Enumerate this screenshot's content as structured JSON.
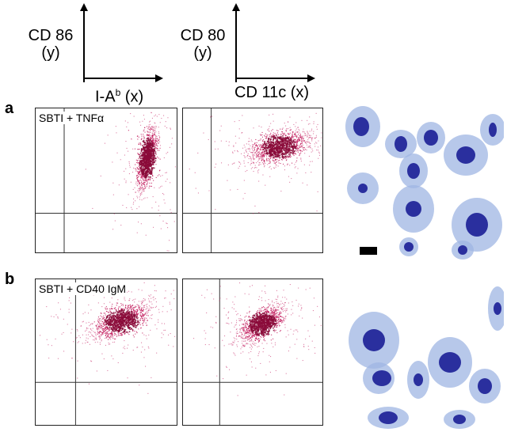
{
  "legend": {
    "left": {
      "y_label": "CD 86",
      "y_suffix": "(y)",
      "x_label": "I-A",
      "x_sup": "b",
      "x_suffix": " (x)"
    },
    "right": {
      "y_label": "CD 80",
      "y_suffix": "(y)",
      "x_label": "CD 11c (x)"
    }
  },
  "rows": [
    {
      "letter": "a",
      "condition": "SBTI + TNFα"
    },
    {
      "letter": "b",
      "condition": "SBTI + CD40 IgM"
    }
  ],
  "colors": {
    "dots": "#c2185b",
    "dots_dense": "#8b0a3a",
    "cell_cytoplasm": "#9fb6e3",
    "cell_nucleus": "#2a2f9e",
    "scale_bar": "#000000"
  },
  "chart_data": [
    {
      "type": "scatter",
      "panel": "a-left",
      "x_axis": "I-Ab",
      "y_axis": "CD 86",
      "scale": "log",
      "population": "diagonal elongated cluster",
      "center": [
        0.78,
        0.66
      ],
      "spread": [
        0.06,
        0.14
      ],
      "tilt": 0.9
    },
    {
      "type": "scatter",
      "panel": "a-right",
      "x_axis": "CD 11c",
      "y_axis": "CD 80",
      "scale": "log",
      "population": "compact cluster high y",
      "center": [
        0.68,
        0.74
      ],
      "spread": [
        0.12,
        0.08
      ],
      "tilt": 0.2
    },
    {
      "type": "scatter",
      "panel": "b-left",
      "x_axis": "I-Ab",
      "y_axis": "CD 86",
      "scale": "log",
      "population": "compact cluster high x high y",
      "center": [
        0.6,
        0.72
      ],
      "spread": [
        0.12,
        0.08
      ],
      "tilt": 0.3
    },
    {
      "type": "scatter",
      "panel": "b-right",
      "x_axis": "CD 11c",
      "y_axis": "CD 80",
      "scale": "log",
      "population": "compact cluster",
      "center": [
        0.56,
        0.7
      ],
      "spread": [
        0.1,
        0.08
      ],
      "tilt": 0.4
    }
  ]
}
